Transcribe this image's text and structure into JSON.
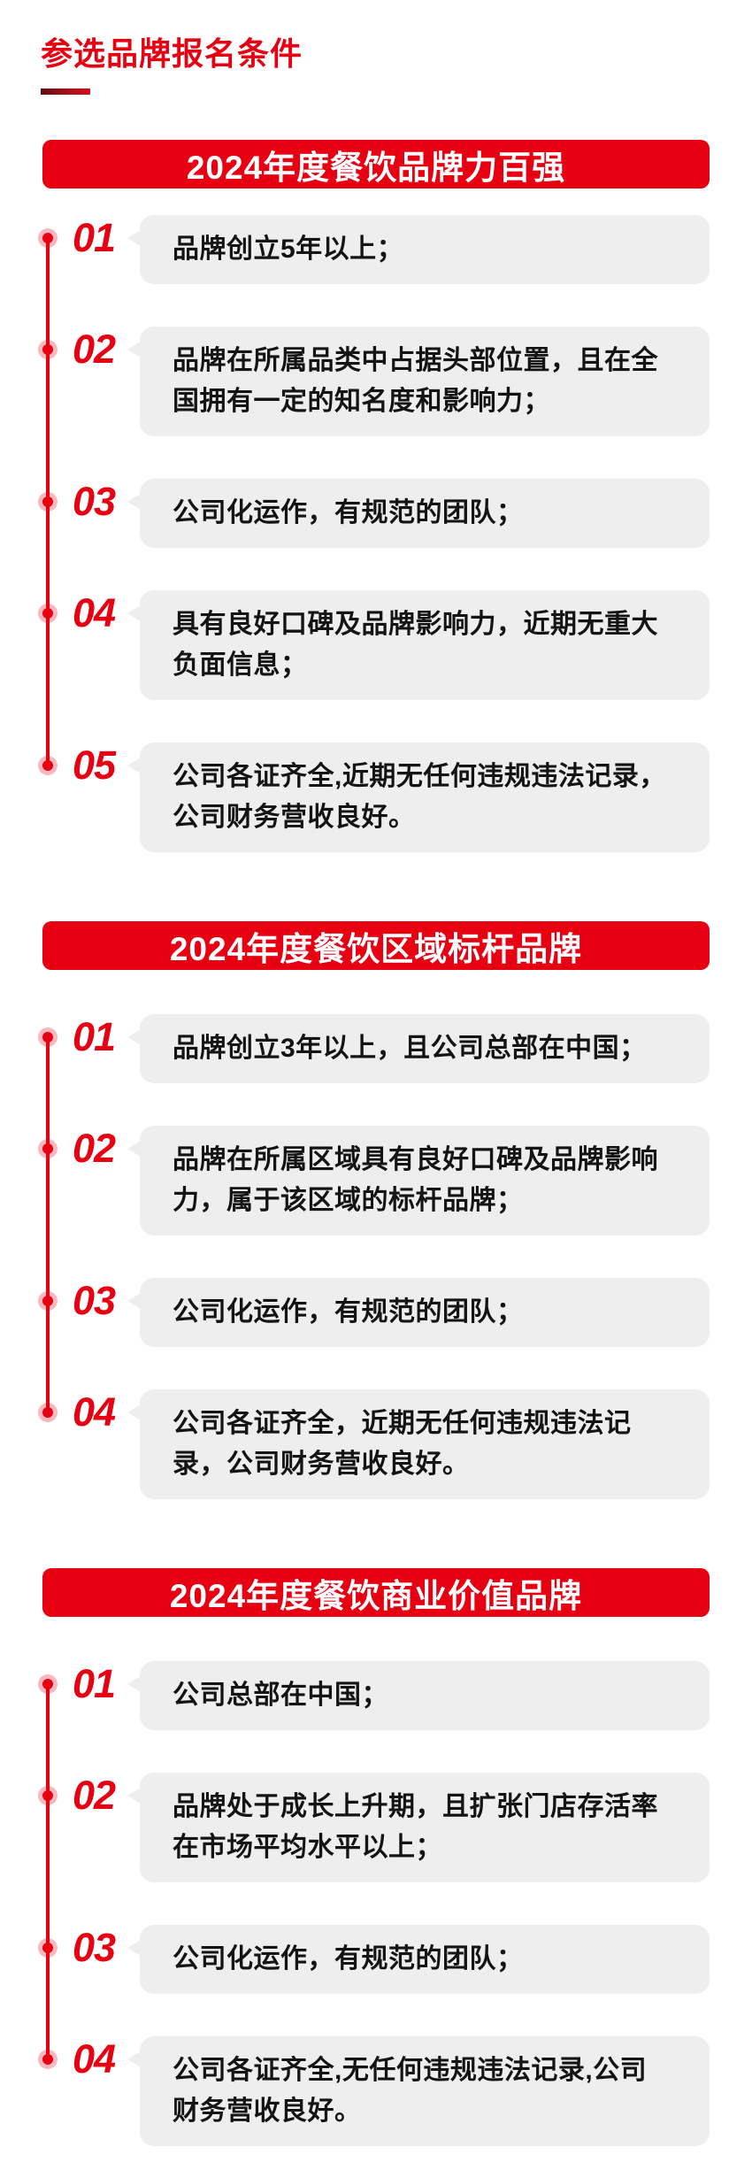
{
  "page": {
    "title": "参选品牌报名条件",
    "accent_color": "#e60012",
    "bubble_color": "#eeeeee"
  },
  "sections": [
    {
      "banner": "2024年度餐饮品牌力百强",
      "items": [
        {
          "num": "01",
          "text": "品牌创立5年以上；"
        },
        {
          "num": "02",
          "text": "品牌在所属品类中占据头部位置，且在全\n国拥有一定的知名度和影响力；"
        },
        {
          "num": "03",
          "text": "公司化运作，有规范的团队；"
        },
        {
          "num": "04",
          "text": "具有良好口碑及品牌影响力，近期无重大\n负面信息；"
        },
        {
          "num": "05",
          "text": "公司各证齐全,近期无任何违规违法记录，\n公司财务营收良好。"
        }
      ]
    },
    {
      "banner": "2024年度餐饮区域标杆品牌",
      "items": [
        {
          "num": "01",
          "text": "品牌创立3年以上，且公司总部在中国；"
        },
        {
          "num": "02",
          "text": "品牌在所属区域具有良好口碑及品牌影响\n力，属于该区域的标杆品牌；"
        },
        {
          "num": "03",
          "text": "公司化运作，有规范的团队；"
        },
        {
          "num": "04",
          "text": "公司各证齐全，近期无任何违规违法记\n录，公司财务营收良好。"
        }
      ]
    },
    {
      "banner": "2024年度餐饮商业价值品牌",
      "items": [
        {
          "num": "01",
          "text": "公司总部在中国；"
        },
        {
          "num": "02",
          "text": "品牌处于成长上升期，且扩张门店存活率\n在市场平均水平以上；"
        },
        {
          "num": "03",
          "text": "公司化运作，有规范的团队；"
        },
        {
          "num": "04",
          "text": "公司各证齐全,无任何违规违法记录,公司\n财务营收良好。"
        }
      ]
    }
  ]
}
